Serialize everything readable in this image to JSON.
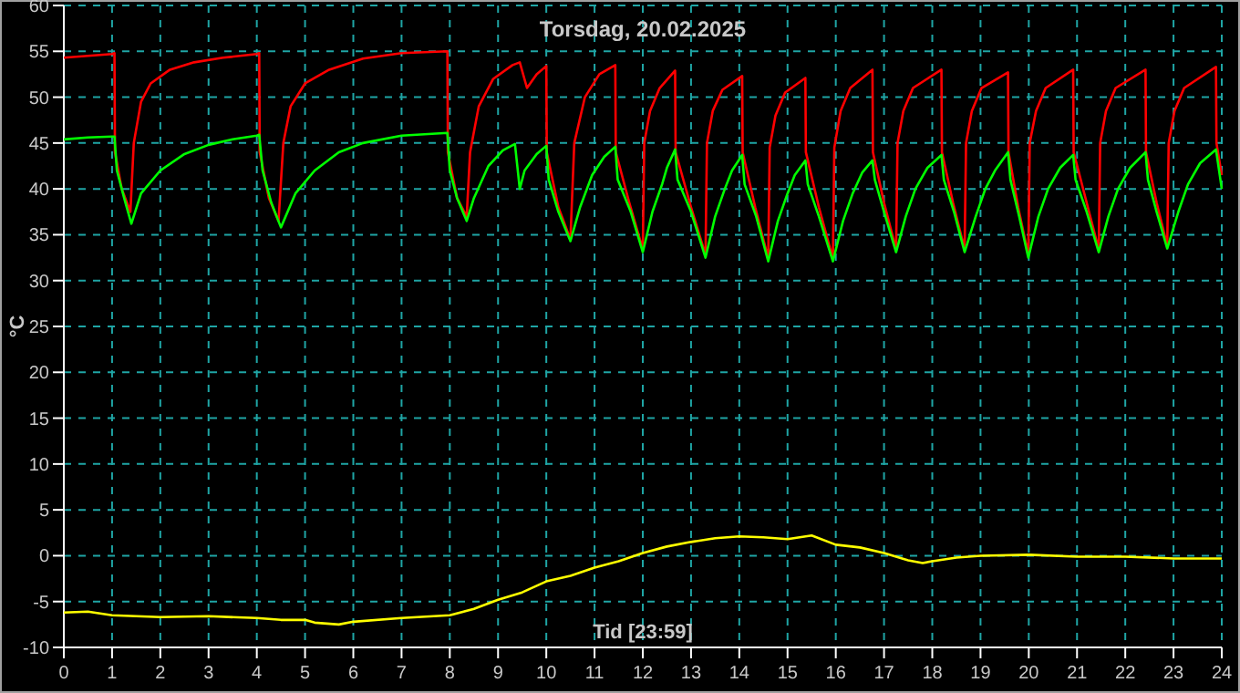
{
  "chart_data": {
    "type": "line",
    "title": "Torsdag, 20.02.2025",
    "xlabel": "Tid [23:59]",
    "ylabel": "°C",
    "xlim": [
      0,
      24
    ],
    "xticks": [
      0,
      1,
      2,
      3,
      4,
      5,
      6,
      7,
      8,
      9,
      10,
      11,
      12,
      13,
      14,
      15,
      16,
      17,
      18,
      19,
      20,
      21,
      22,
      23,
      24
    ],
    "ylim": [
      -10,
      60
    ],
    "yticks": [
      -10,
      -5,
      0,
      5,
      10,
      15,
      20,
      25,
      30,
      35,
      40,
      45,
      50,
      55,
      60
    ],
    "grid": true,
    "marker": "none",
    "line_style": "solid",
    "series": [
      {
        "color": "#ff0000",
        "x": [
          0,
          0.5,
          1.0,
          1.05,
          1.06,
          1.2,
          1.38,
          1.45,
          1.6,
          1.8,
          2.2,
          2.7,
          3.3,
          4.0,
          4.05,
          4.06,
          4.25,
          4.45,
          4.55,
          4.7,
          5.0,
          5.5,
          6.2,
          7.0,
          7.95,
          7.96,
          8.15,
          8.35,
          8.42,
          8.6,
          8.9,
          9.3,
          9.45,
          9.6,
          9.8,
          10.0,
          10.01,
          10.25,
          10.5,
          10.58,
          10.8,
          11.1,
          11.43,
          11.44,
          11.72,
          12.0,
          12.03,
          12.15,
          12.35,
          12.67,
          12.68,
          13.0,
          13.3,
          13.33,
          13.45,
          13.65,
          14.06,
          14.07,
          14.33,
          14.6,
          14.63,
          14.75,
          14.95,
          15.37,
          15.38,
          15.65,
          15.94,
          15.97,
          16.1,
          16.3,
          16.76,
          16.77,
          17.0,
          17.25,
          17.28,
          17.4,
          17.6,
          18.19,
          18.2,
          18.43,
          18.67,
          18.7,
          18.82,
          19.02,
          19.57,
          19.58,
          19.78,
          19.99,
          20.02,
          20.15,
          20.35,
          20.92,
          20.93,
          21.2,
          21.45,
          21.48,
          21.6,
          21.8,
          22.42,
          22.43,
          22.65,
          22.87,
          22.9,
          23.02,
          23.22,
          23.88,
          23.89,
          24
        ],
        "values": [
          54.3,
          54.5,
          54.7,
          54.8,
          44,
          40,
          37.5,
          45,
          49.5,
          51.5,
          53,
          53.8,
          54.3,
          54.7,
          54.8,
          44,
          39,
          36.5,
          45,
          49,
          51.5,
          53,
          54.2,
          54.8,
          55,
          44,
          39,
          37,
          44,
          49,
          52,
          53.5,
          53.8,
          51,
          52.5,
          53.4,
          44,
          38,
          34.5,
          45,
          50,
          52.5,
          53.5,
          44,
          38.5,
          33.4,
          45,
          48.5,
          51,
          52.9,
          44,
          38,
          32.8,
          45,
          48.5,
          50.8,
          52.3,
          44,
          38,
          32.4,
          44.5,
          48,
          50.5,
          52.1,
          44,
          38,
          32.4,
          44.5,
          48.5,
          51,
          53.0,
          44,
          38.5,
          33.4,
          45,
          48.5,
          51,
          53.0,
          44,
          38.5,
          33.4,
          45,
          48.5,
          51,
          52.7,
          44,
          38,
          32.8,
          45,
          48.5,
          51,
          53.0,
          44,
          38.5,
          33.4,
          45,
          48.5,
          51,
          53.0,
          44,
          38.5,
          33.8,
          45,
          48.5,
          51,
          53.3,
          45,
          41.5
        ]
      },
      {
        "color": "#00ff00",
        "x": [
          0,
          0.5,
          1.0,
          1.05,
          1.1,
          1.25,
          1.4,
          1.6,
          2.0,
          2.5,
          3.0,
          3.5,
          4.0,
          4.05,
          4.12,
          4.3,
          4.5,
          4.8,
          5.2,
          5.7,
          6.2,
          7.0,
          7.95,
          8.0,
          8.15,
          8.35,
          8.5,
          8.8,
          9.1,
          9.35,
          9.45,
          9.55,
          9.8,
          10.0,
          10.05,
          10.25,
          10.5,
          10.7,
          10.95,
          11.2,
          11.43,
          11.48,
          11.75,
          12.0,
          12.2,
          12.4,
          12.5,
          12.67,
          12.72,
          13.0,
          13.3,
          13.5,
          13.7,
          13.85,
          14.06,
          14.11,
          14.35,
          14.6,
          14.8,
          15.0,
          15.15,
          15.37,
          15.42,
          15.65,
          15.94,
          16.15,
          16.35,
          16.55,
          16.76,
          16.81,
          17.0,
          17.25,
          17.45,
          17.65,
          17.9,
          18.19,
          18.24,
          18.45,
          18.67,
          18.9,
          19.1,
          19.3,
          19.57,
          19.62,
          19.8,
          19.99,
          20.2,
          20.4,
          20.65,
          20.92,
          20.97,
          21.2,
          21.45,
          21.65,
          21.85,
          22.1,
          22.42,
          22.47,
          22.65,
          22.87,
          23.1,
          23.3,
          23.55,
          23.88,
          24
        ],
        "values": [
          45.4,
          45.6,
          45.7,
          45.7,
          42,
          39,
          36.2,
          39.5,
          42,
          43.8,
          44.8,
          45.4,
          45.8,
          45.9,
          42,
          38.5,
          35.8,
          39.5,
          42,
          44,
          45,
          45.8,
          46.1,
          42,
          39,
          36.5,
          39,
          42.5,
          44.2,
          44.9,
          40,
          42,
          43.8,
          44.7,
          41,
          37.5,
          34.3,
          38,
          41.5,
          43.5,
          44.6,
          41,
          37.5,
          33.1,
          37.5,
          40.5,
          42.3,
          44.3,
          41,
          37.5,
          32.5,
          37,
          40,
          42,
          43.7,
          40.5,
          37,
          32.1,
          36.5,
          39.5,
          41.5,
          43.1,
          40.5,
          37,
          32.1,
          36.5,
          39.5,
          41.8,
          43.1,
          41,
          37.5,
          33.1,
          37,
          40,
          42.3,
          43.7,
          41,
          37.5,
          33.1,
          37,
          40,
          42,
          44,
          41,
          37,
          32.5,
          37,
          40,
          42.3,
          43.7,
          41,
          37.5,
          33.1,
          37,
          40,
          42.3,
          44,
          41,
          37.5,
          33.5,
          37.5,
          40.5,
          42.8,
          44.3,
          40
        ]
      },
      {
        "color": "#ffff00",
        "x": [
          0,
          0.5,
          1,
          2,
          3,
          4,
          4.5,
          5,
          5.2,
          5.7,
          6,
          7,
          8,
          8.5,
          9,
          9.5,
          10,
          10.5,
          11,
          11.5,
          12,
          12.5,
          13,
          13.5,
          14,
          14.5,
          15,
          15.5,
          16,
          16.5,
          17,
          17.5,
          17.8,
          18,
          18.5,
          19,
          20,
          21,
          22,
          23,
          24
        ],
        "values": [
          -6.2,
          -6.1,
          -6.5,
          -6.7,
          -6.6,
          -6.8,
          -7.0,
          -7.0,
          -7.3,
          -7.5,
          -7.2,
          -6.8,
          -6.5,
          -5.8,
          -4.8,
          -4.0,
          -2.8,
          -2.2,
          -1.3,
          -0.6,
          0.3,
          1.0,
          1.5,
          1.9,
          2.1,
          2.0,
          1.8,
          2.2,
          1.2,
          0.9,
          0.3,
          -0.5,
          -0.8,
          -0.6,
          -0.2,
          0,
          0.1,
          -0.1,
          -0.1,
          -0.3,
          -0.3
        ]
      }
    ]
  }
}
